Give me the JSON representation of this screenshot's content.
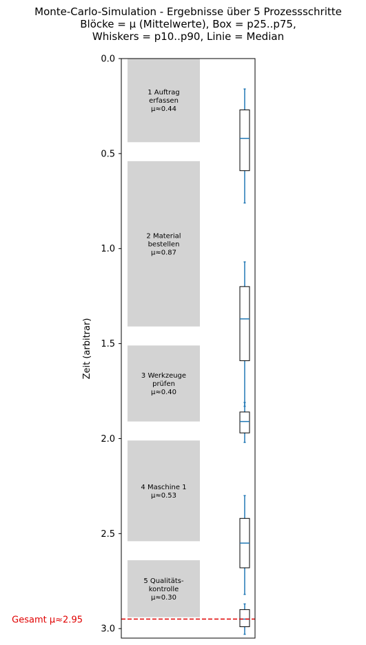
{
  "chart_data": {
    "type": "box",
    "title_lines": [
      "Monte-Carlo-Simulation - Ergebnisse über 5 Prozessschritte",
      "Blöcke = µ (Mittelwerte), Box = p25..p75,",
      "Whiskers = p10..p90, Linie = Median"
    ],
    "ylabel": "Zeit (arbitrar)",
    "ylim": [
      3.05,
      0.0
    ],
    "y_inverted": true,
    "yticks": [
      0.0,
      0.5,
      1.0,
      1.5,
      2.0,
      2.5,
      3.0
    ],
    "ytick_labels": [
      "0.0",
      "0.5",
      "1.0",
      "1.5",
      "2.0",
      "2.5",
      "3.0"
    ],
    "grid": false,
    "block_color": "#d3d3d3",
    "whisker_color": "#1f77b4",
    "median_color": "#1f77b4",
    "blocks": [
      {
        "label_lines": [
          "1 Auftrag",
          "erfassen",
          "µ≈0.44"
        ],
        "start": 0.0,
        "end": 0.44
      },
      {
        "label_lines": [
          "2 Material",
          "bestellen",
          "µ≈0.87"
        ],
        "start": 0.54,
        "end": 1.41
      },
      {
        "label_lines": [
          "3 Werkzeuge",
          "prüfen",
          "µ≈0.40"
        ],
        "start": 1.51,
        "end": 1.91
      },
      {
        "label_lines": [
          "4 Maschine 1",
          "µ≈0.53"
        ],
        "start": 2.01,
        "end": 2.54
      },
      {
        "label_lines": [
          "5 Qualitäts-",
          "kontrolle",
          "µ≈0.30"
        ],
        "start": 2.64,
        "end": 2.94
      }
    ],
    "boxes": [
      {
        "p10": 0.16,
        "p25": 0.27,
        "median": 0.42,
        "p75": 0.59,
        "p90": 0.76
      },
      {
        "p10": 1.07,
        "p25": 1.2,
        "median": 1.37,
        "p75": 1.59,
        "p90": 1.83
      },
      {
        "p10": 1.81,
        "p25": 1.86,
        "median": 1.91,
        "p75": 1.97,
        "p90": 2.02
      },
      {
        "p10": 2.3,
        "p25": 2.42,
        "median": 2.55,
        "p75": 2.68,
        "p90": 2.82
      },
      {
        "p10": 2.87,
        "p25": 2.9,
        "median": 2.95,
        "p75": 2.99,
        "p90": 3.03
      }
    ],
    "total": {
      "label": "Gesamt µ≈2.95",
      "value": 2.95,
      "color": "#e00000"
    }
  }
}
